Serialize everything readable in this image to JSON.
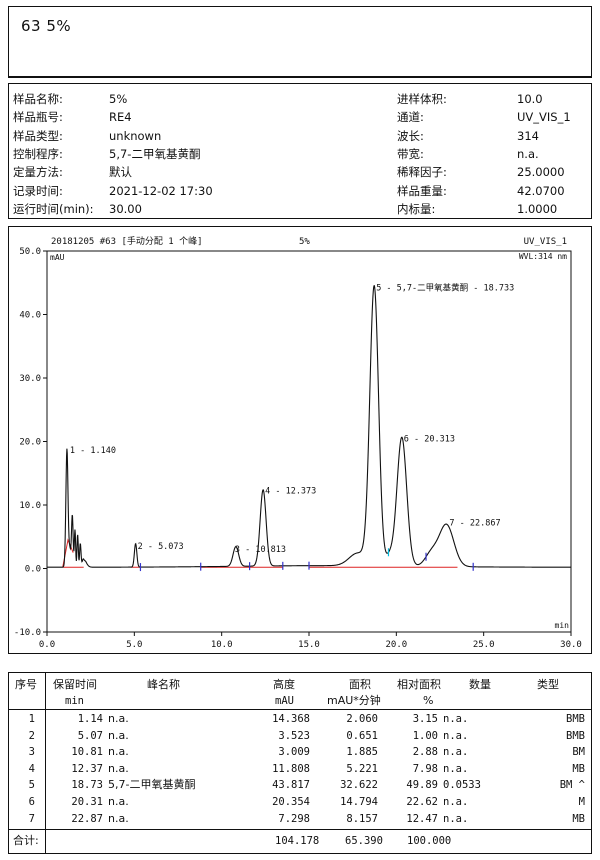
{
  "header": {
    "title": "63  5%"
  },
  "info": {
    "left": [
      {
        "label": "样品名称:",
        "value": "5%"
      },
      {
        "label": "样品瓶号:",
        "value": "RE4"
      },
      {
        "label": "样品类型:",
        "value": "unknown"
      },
      {
        "label": "控制程序:",
        "value": "5,7-二甲氧基黄酮"
      },
      {
        "label": "定量方法:",
        "value": "默认"
      },
      {
        "label": "记录时间:",
        "value": "2021-12-02 17:30"
      },
      {
        "label": "运行时间(min):",
        "value": "30.00"
      }
    ],
    "right": [
      {
        "label": "进样体积:",
        "value": "10.0"
      },
      {
        "label": "通道:",
        "value": "UV_VIS_1"
      },
      {
        "label": "波长:",
        "value": "314"
      },
      {
        "label": "带宽:",
        "value": "n.a."
      },
      {
        "label": "稀释因子:",
        "value": "25.0000"
      },
      {
        "label": "样品重量:",
        "value": "42.0700"
      },
      {
        "label": "内标量:",
        "value": "1.0000"
      }
    ]
  },
  "chart_data": {
    "type": "line",
    "header_left": "20181205 #63 [手动分配 1 个峰]",
    "header_center": "5%",
    "header_right": "UV_VIS_1",
    "wavelength_label": "WVL:314 nm",
    "ylabel": "mAU",
    "xlabel": "min",
    "xlim": [
      0,
      30
    ],
    "ylim": [
      -10,
      50
    ],
    "xticks": [
      "0.0",
      "5.0",
      "10.0",
      "15.0",
      "20.0",
      "25.0",
      "30.0"
    ],
    "yticks": [
      "-10.0",
      "0.0",
      "10.0",
      "20.0",
      "30.0",
      "40.0",
      "50.0"
    ],
    "peaks": [
      {
        "label": "1 - 1.140",
        "rt": 1.14,
        "height": 18.2
      },
      {
        "label": "2 - 5.073",
        "rt": 5.073,
        "height": 3.7
      },
      {
        "label": "3 - 10.813",
        "rt": 10.813,
        "height": 3.2
      },
      {
        "label": "4 - 12.373",
        "rt": 12.373,
        "height": 12.1
      },
      {
        "label": "5 - 5,7-二甲氧基黄酮 - 18.733",
        "rt": 18.733,
        "height": 44.4
      },
      {
        "label": "6 - 20.313",
        "rt": 20.313,
        "height": 20.6
      },
      {
        "label": "7 - 22.867",
        "rt": 22.867,
        "height": 7.4
      }
    ]
  },
  "table": {
    "headers": {
      "no": "序号",
      "rt": "保留时间",
      "rt_unit": "min",
      "name": "峰名称",
      "height": "高度",
      "height_unit": "mAU",
      "area": "面积",
      "area_unit": "mAU*分钟",
      "rel_area": "相对面积",
      "rel_area_unit": "%",
      "amount": "数量",
      "type": "类型"
    },
    "rows": [
      {
        "no": "1",
        "rt": "1.14",
        "name": "n.a.",
        "height": "14.368",
        "area": "2.060",
        "rel_area": "3.15",
        "amount": "n.a.",
        "type": "BMB"
      },
      {
        "no": "2",
        "rt": "5.07",
        "name": "n.a.",
        "height": "3.523",
        "area": "0.651",
        "rel_area": "1.00",
        "amount": "n.a.",
        "type": "BMB"
      },
      {
        "no": "3",
        "rt": "10.81",
        "name": "n.a.",
        "height": "3.009",
        "area": "1.885",
        "rel_area": "2.88",
        "amount": "n.a.",
        "type": "BM"
      },
      {
        "no": "4",
        "rt": "12.37",
        "name": "n.a.",
        "height": "11.808",
        "area": "5.221",
        "rel_area": "7.98",
        "amount": "n.a.",
        "type": "MB"
      },
      {
        "no": "5",
        "rt": "18.73",
        "name": "5,7-二甲氧基黄酮",
        "height": "43.817",
        "area": "32.622",
        "rel_area": "49.89",
        "amount": "0.0533",
        "type": "BM ^"
      },
      {
        "no": "6",
        "rt": "20.31",
        "name": "n.a.",
        "height": "20.354",
        "area": "14.794",
        "rel_area": "22.62",
        "amount": "n.a.",
        "type": "M"
      },
      {
        "no": "7",
        "rt": "22.87",
        "name": "n.a.",
        "height": "7.298",
        "area": "8.157",
        "rel_area": "12.47",
        "amount": "n.a.",
        "type": "MB"
      }
    ],
    "total": {
      "label": "合计:",
      "height": "104.178",
      "area": "65.390",
      "rel_area": "100.000"
    }
  }
}
